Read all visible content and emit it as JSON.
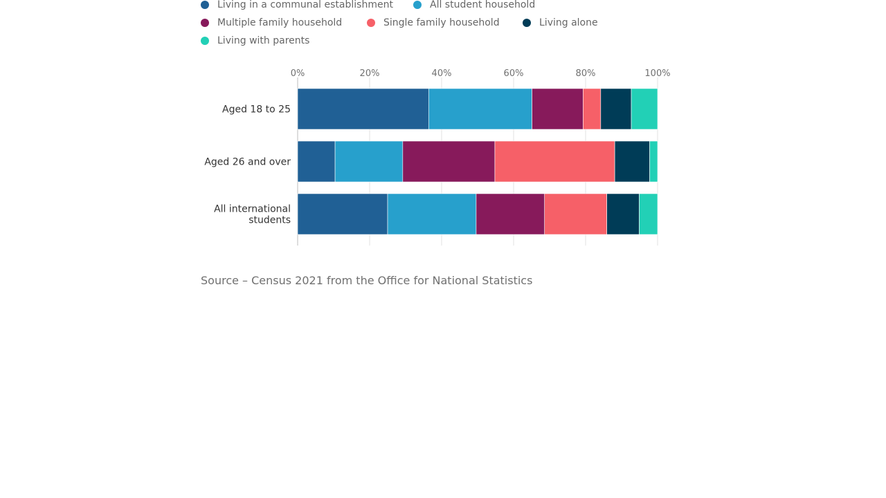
{
  "chart_data": {
    "type": "bar",
    "orientation": "horizontal",
    "stacked": true,
    "xlim": [
      0,
      100
    ],
    "x_ticks": [
      "0%",
      "20%",
      "40%",
      "60%",
      "80%",
      "100%"
    ],
    "categories": [
      "Aged 18 to 25",
      "Aged 26 and over",
      "All international students"
    ],
    "series": [
      {
        "name": "Living in a communal establishment",
        "color": "#206095",
        "values": [
          36.4,
          10.4,
          25.0
        ]
      },
      {
        "name": "All student household",
        "color": "#27a0cc",
        "values": [
          28.7,
          18.8,
          24.6
        ]
      },
      {
        "name": "Multiple family household",
        "color": "#871a5b",
        "values": [
          14.2,
          25.6,
          19.0
        ]
      },
      {
        "name": "Single family household",
        "color": "#f66068",
        "values": [
          4.9,
          33.3,
          17.3
        ]
      },
      {
        "name": "Living alone",
        "color": "#003c57",
        "values": [
          8.5,
          9.7,
          9.0
        ]
      },
      {
        "name": "Living with parents",
        "color": "#22d0b6",
        "values": [
          7.3,
          2.2,
          5.1
        ]
      }
    ],
    "legend_position": "top"
  },
  "source": "Source – Census 2021 from the Office for National Statistics"
}
